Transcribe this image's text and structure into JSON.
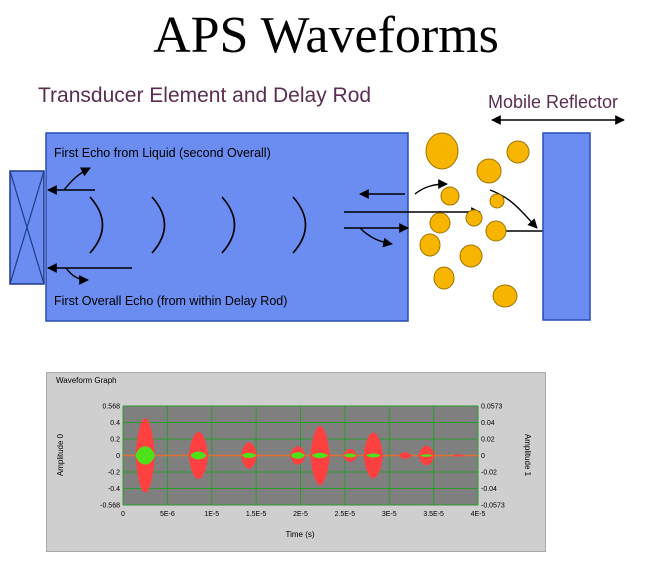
{
  "title": "APS Waveforms",
  "labels": {
    "transducer": "Transducer Element and Delay Rod",
    "reflector": "Mobile Reflector",
    "first_echo_liquid": "First Echo from Liquid (second Overall)",
    "first_overall_echo": "First Overall Echo  (from within Delay  Rod)"
  },
  "colors": {
    "rod_fill": "#6b8cf0",
    "rod_stroke": "#2a4db8",
    "particle_fill": "#f7b500",
    "particle_stroke": "#a07400",
    "reflector_fill": "#6b8cf0",
    "signal_red": "#ff4040",
    "signal_green": "#4de11a",
    "grid_green": "#2d9a2d",
    "plot_bg": "#7f7f7f",
    "panel_bg": "#cfcfcf"
  },
  "waveform_graph": {
    "panel_title": "Waveform Graph",
    "chart_data": {
      "type": "line",
      "xlabel": "Time (s)",
      "ylabel_left": "Amplitude 0",
      "ylabel_right": "Amplitude 1",
      "x_ticks": [
        "0",
        "5E-6",
        "1E-5",
        "1.5E-5",
        "2E-5",
        "2.5E-5",
        "3E-5",
        "3.5E-5",
        "4E-5"
      ],
      "y_left_ticks": [
        "0.568",
        "0.4",
        "0.2",
        "0",
        "-0.2",
        "-0.4",
        "-0.568"
      ],
      "y_right_ticks": [
        "0.0573",
        "0.04",
        "0.02",
        "0",
        "-0.02",
        "-0.04",
        "-0.0573"
      ],
      "xlim": [
        0,
        4e-05
      ],
      "ylim_left": [
        -0.568,
        0.568
      ],
      "ylim_right": [
        -0.0573,
        0.0573
      ],
      "series": [
        {
          "color": "#ff4040",
          "axis": "left",
          "bursts": [
            {
              "center": 2.5e-06,
              "amplitude": 0.568,
              "width": 2.2e-06
            },
            {
              "center": 8.5e-06,
              "amplitude": 0.36,
              "width": 2.2e-06
            },
            {
              "center": 1.42e-05,
              "amplitude": 0.2,
              "width": 1.8e-06
            },
            {
              "center": 1.97e-05,
              "amplitude": 0.14,
              "width": 1.8e-06
            },
            {
              "center": 2.22e-05,
              "amplitude": 0.45,
              "width": 2.2e-06
            },
            {
              "center": 2.56e-05,
              "amplitude": 0.1,
              "width": 1.6e-06
            },
            {
              "center": 2.82e-05,
              "amplitude": 0.35,
              "width": 2.2e-06
            },
            {
              "center": 3.18e-05,
              "amplitude": 0.05,
              "width": 1.4e-06
            },
            {
              "center": 3.42e-05,
              "amplitude": 0.15,
              "width": 1.8e-06
            },
            {
              "center": 3.78e-05,
              "amplitude": 0.02,
              "width": 1.2e-06
            }
          ]
        },
        {
          "color": "#4de11a",
          "axis": "right",
          "bursts": [
            {
              "center": 2.5e-06,
              "amplitude": 0.014,
              "width": 2.2e-06
            },
            {
              "center": 8.5e-06,
              "amplitude": 0.006,
              "width": 1.8e-06
            },
            {
              "center": 1.42e-05,
              "amplitude": 0.004,
              "width": 1.6e-06
            },
            {
              "center": 1.97e-05,
              "amplitude": 0.005,
              "width": 1.6e-06
            },
            {
              "center": 2.22e-05,
              "amplitude": 0.004,
              "width": 1.8e-06
            },
            {
              "center": 2.56e-05,
              "amplitude": 0.003,
              "width": 1.4e-06
            },
            {
              "center": 2.82e-05,
              "amplitude": 0.003,
              "width": 1.6e-06
            },
            {
              "center": 3.42e-05,
              "amplitude": 0.002,
              "width": 1.4e-06
            }
          ]
        }
      ]
    }
  }
}
